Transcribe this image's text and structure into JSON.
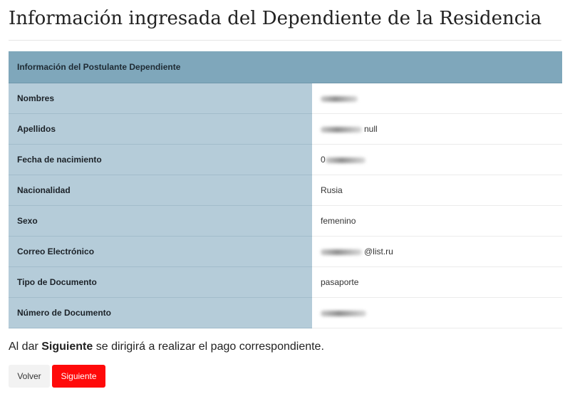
{
  "page": {
    "title": "Información ingresada del Dependiente de la Residencia"
  },
  "table": {
    "header": "Información del Postulante Dependiente",
    "rows": [
      {
        "label": "Nombres",
        "value": "",
        "redacted": true
      },
      {
        "label": "Apellidos",
        "value": "null",
        "redacted": true
      },
      {
        "label": "Fecha de nacimiento",
        "value": "0",
        "redacted": true
      },
      {
        "label": "Nacionalidad",
        "value": "Rusia",
        "redacted": false
      },
      {
        "label": "Sexo",
        "value": "femenino",
        "redacted": false
      },
      {
        "label": "Correo Electrónico",
        "value": "@list.ru",
        "redacted": true
      },
      {
        "label": "Tipo de Documento",
        "value": "pasaporte",
        "redacted": false
      },
      {
        "label": "Número de Documento",
        "value": "",
        "redacted": true
      }
    ]
  },
  "notice": {
    "prefix": "Al dar",
    "emphasis": "Siguiente",
    "suffix": "se dirigirá a realizar el pago correspondiente."
  },
  "buttons": {
    "back_label": "Volver",
    "next_label": "Siguiente"
  },
  "colors": {
    "header_bg": "#7fa7bb",
    "label_bg": "#b5ccd9",
    "primary_button": "#ff0a0a"
  }
}
